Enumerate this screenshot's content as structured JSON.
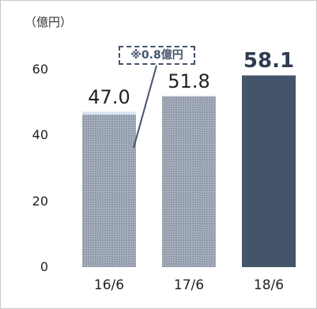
{
  "chart_data": {
    "type": "bar",
    "unit_label": "（億円）",
    "categories": [
      "16/6",
      "17/6",
      "18/6"
    ],
    "values": [
      47.0,
      51.8,
      58.1
    ],
    "value_labels": [
      "47.0",
      "51.8",
      "58.1"
    ],
    "yticks": [
      0,
      20,
      40,
      60
    ],
    "ylim": [
      0,
      72
    ],
    "grid": false,
    "annotation": {
      "text": "※0.8億円",
      "target": "16/6",
      "segment_value": 0.8
    },
    "colors": {
      "bar_hatched": "#a9b1be",
      "bar_hatched_dark": "#6f7c90",
      "bar_solid": "#44546a",
      "callout": "#44546a"
    }
  }
}
